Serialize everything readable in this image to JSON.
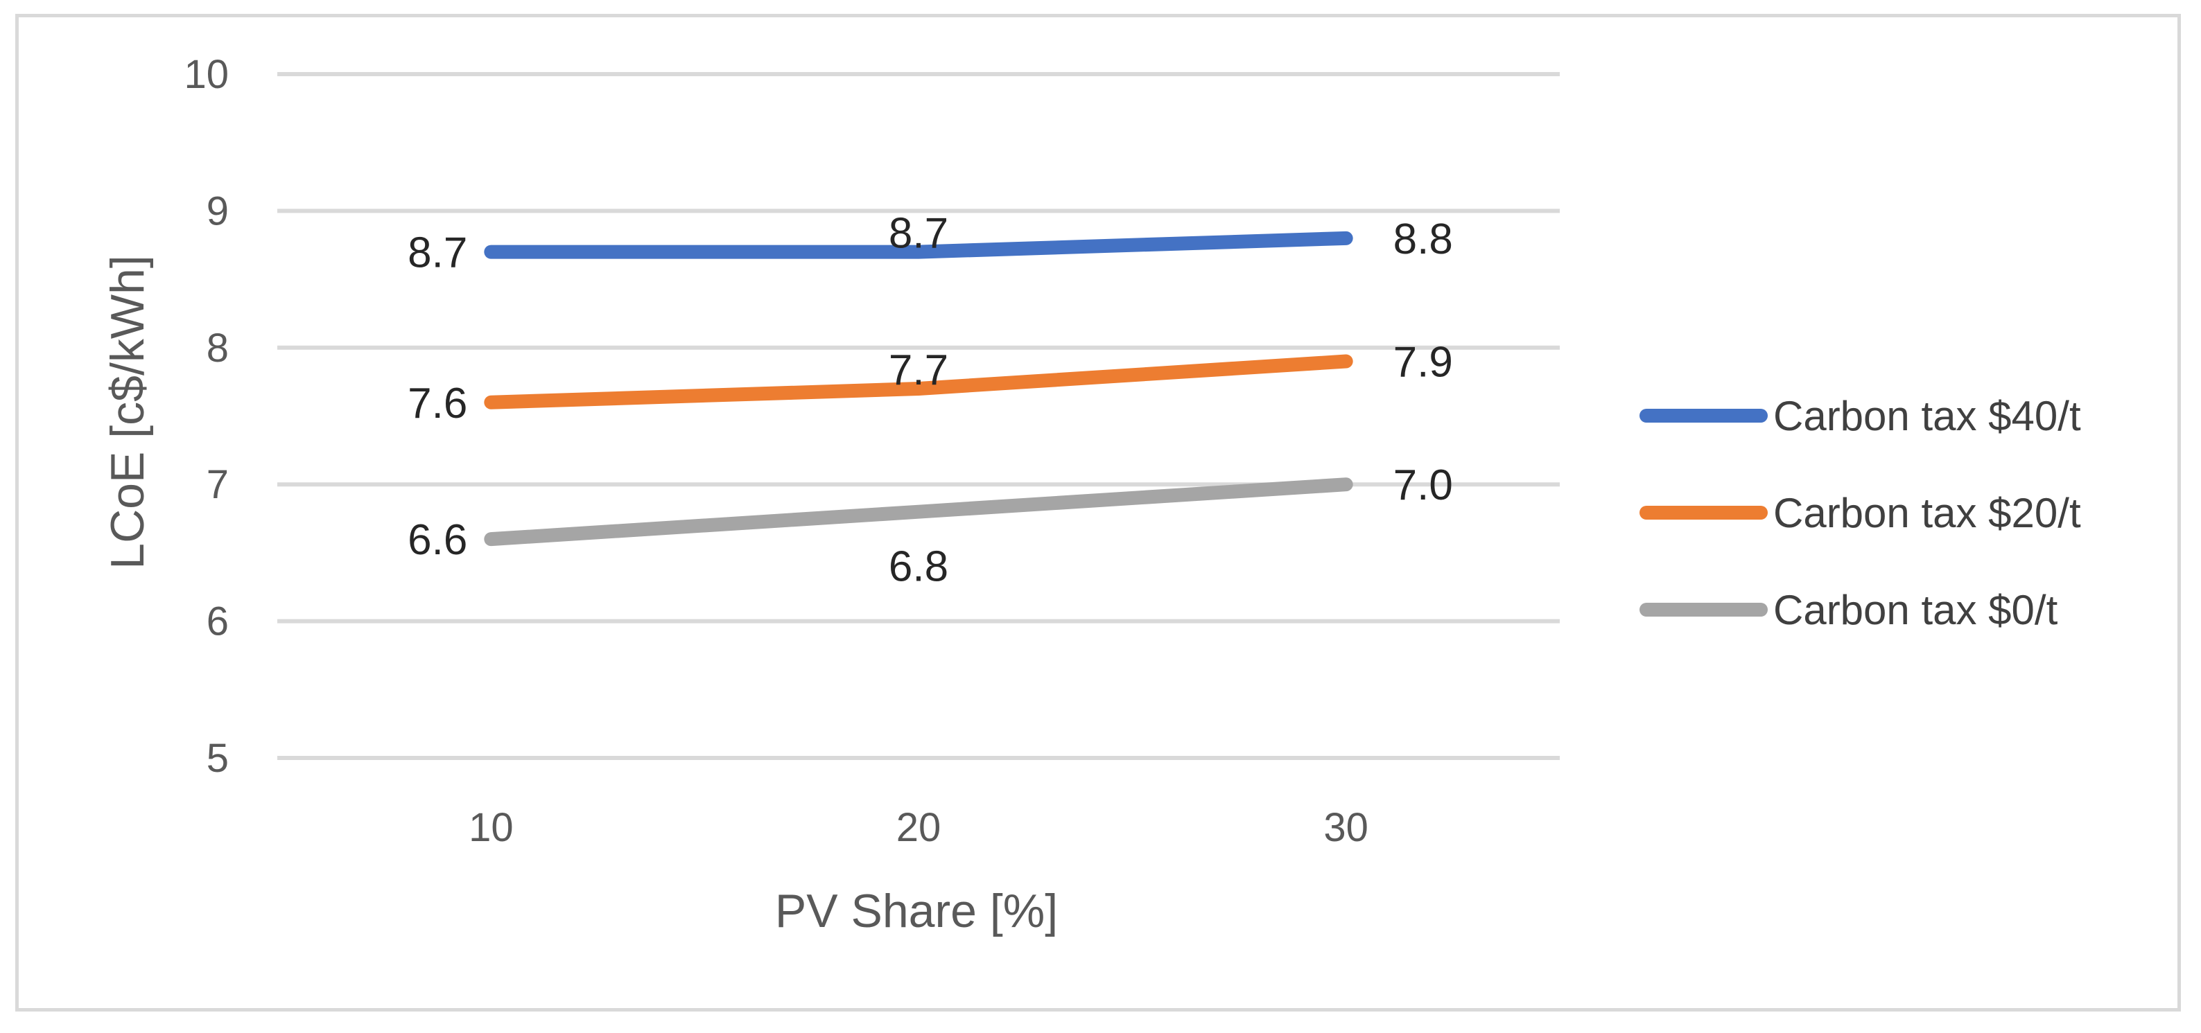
{
  "chart_data": {
    "type": "line",
    "title": "",
    "xlabel": "PV Share [%]",
    "ylabel": "LCoE [c$/kWh]",
    "categories": [
      "10",
      "20",
      "30"
    ],
    "ylim": [
      5,
      10
    ],
    "yticks": [
      "5",
      "6",
      "7",
      "8",
      "9",
      "10"
    ],
    "grid": true,
    "legend_position": "right",
    "series": [
      {
        "name": "Carbon tax $40/t",
        "color": "#4472c4",
        "values": [
          8.7,
          8.7,
          8.8
        ],
        "labels": [
          "8.7",
          "8.7",
          "8.8"
        ]
      },
      {
        "name": "Carbon tax $20/t",
        "color": "#ed7d31",
        "values": [
          7.6,
          7.7,
          7.9
        ],
        "labels": [
          "7.6",
          "7.7",
          "7.9"
        ]
      },
      {
        "name": "Carbon tax $0/t",
        "color": "#a5a5a5",
        "values": [
          6.6,
          6.8,
          7.0
        ],
        "labels": [
          "6.6",
          "6.8",
          "7.0"
        ]
      }
    ]
  }
}
